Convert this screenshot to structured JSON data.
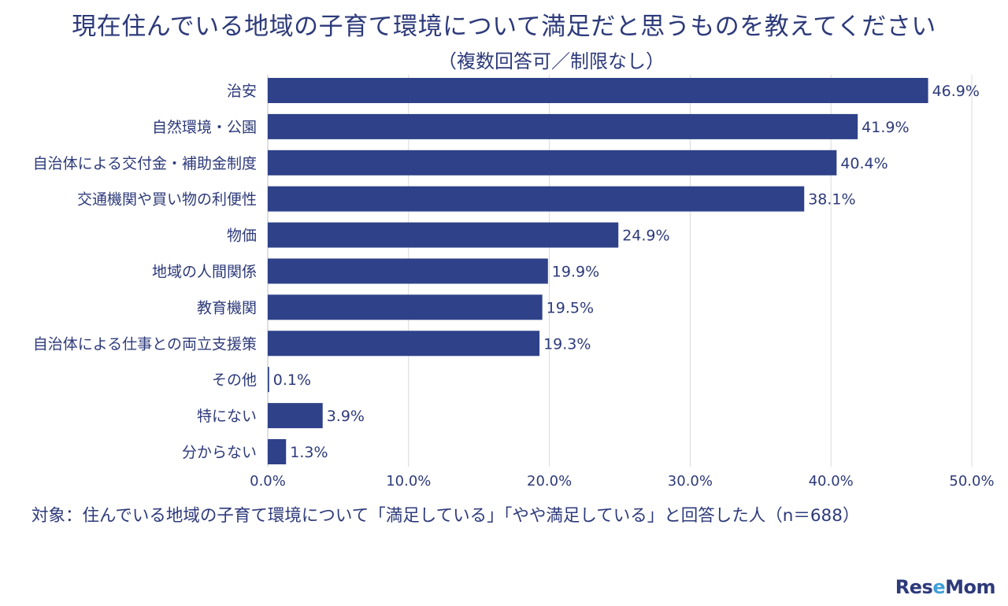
{
  "title": "現在住んでいる地域の子育て環境について満足だと思うものを教えてください",
  "subtitle": "（複数回答可／制限なし）",
  "note": "対象：住んでいる地域の子育て環境について「満足している」「やや満足している」と回答した人（n＝688）",
  "logo": "ReseMom",
  "colors": {
    "bar": "#2e4189",
    "text": "#2d3a7a",
    "grid": "#d9d9d9"
  },
  "chart_data": {
    "type": "bar",
    "orientation": "horizontal",
    "categories": [
      "治安",
      "自然環境・公園",
      "自治体による交付金・補助金制度",
      "交通機関や買い物の利便性",
      "物価",
      "地域の人間関係",
      "教育機関",
      "自治体による仕事との両立支援策",
      "その他",
      "特にない",
      "分からない"
    ],
    "values": [
      46.9,
      41.9,
      40.4,
      38.1,
      24.9,
      19.9,
      19.5,
      19.3,
      0.1,
      3.9,
      1.3
    ],
    "value_labels": [
      "46.9%",
      "41.9%",
      "40.4%",
      "38.1%",
      "24.9%",
      "19.9%",
      "19.5%",
      "19.3%",
      "0.1%",
      "3.9%",
      "1.3%"
    ],
    "xlim": [
      0,
      50
    ],
    "xticks": [
      0,
      10,
      20,
      30,
      40,
      50
    ],
    "xtick_labels": [
      "0.0%",
      "10.0%",
      "20.0%",
      "30.0%",
      "40.0%",
      "50.0%"
    ],
    "grid": true
  }
}
